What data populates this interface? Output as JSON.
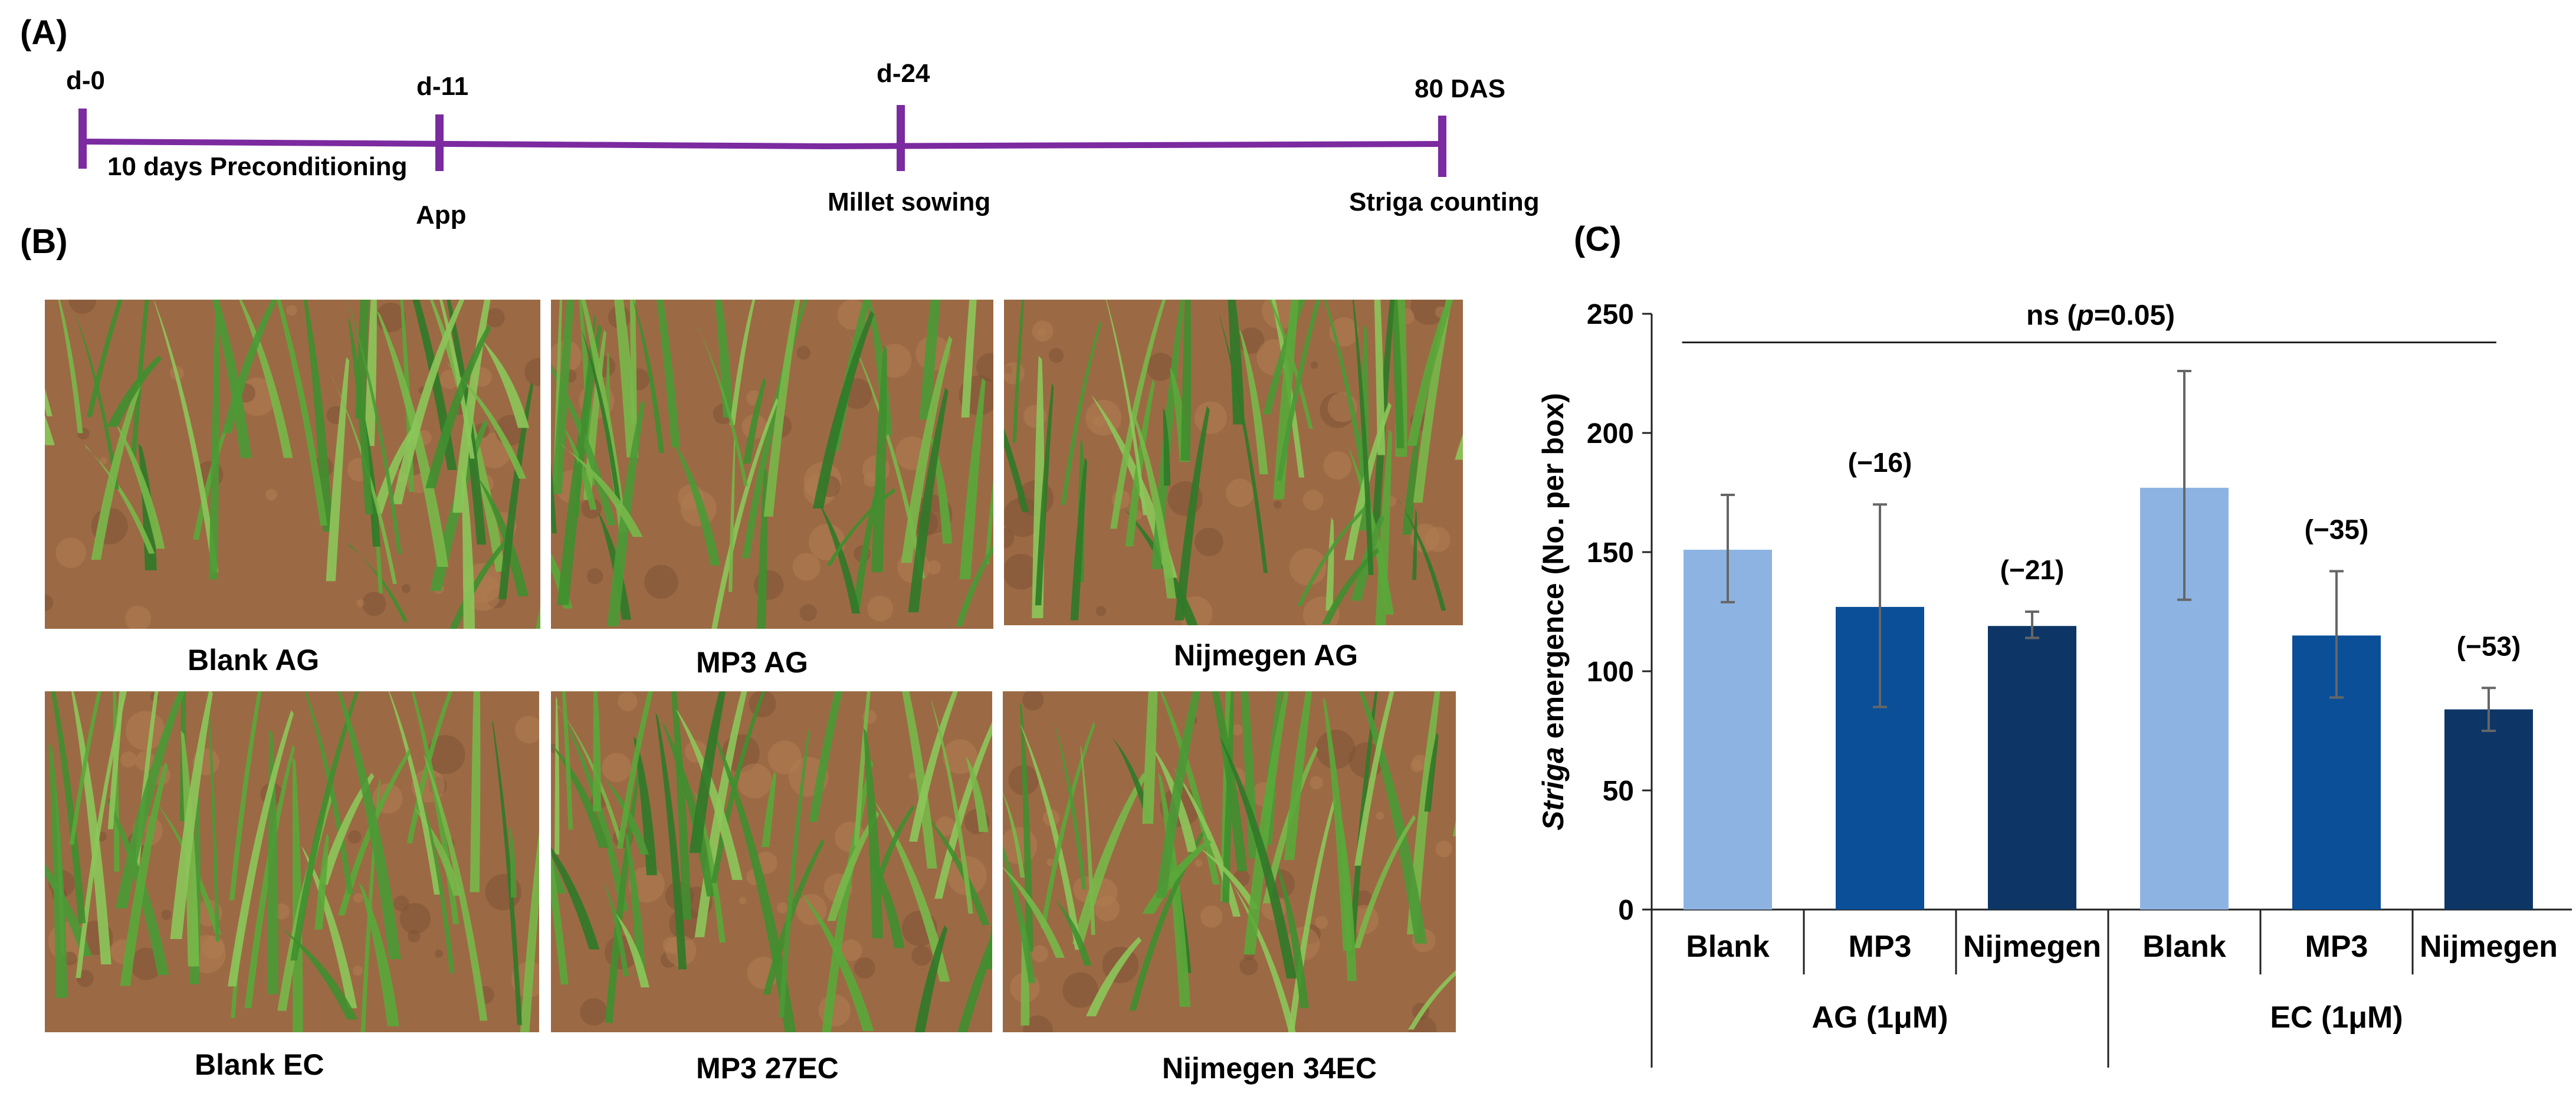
{
  "panels": {
    "a": "(A)",
    "b": "(B)",
    "c": "(C)"
  },
  "timeline": {
    "color": "#7b2aa0",
    "ticks": [
      {
        "top": "d-0",
        "bottom": ""
      },
      {
        "top": "d-11",
        "bottom": "App"
      },
      {
        "top": "d-24",
        "bottom": "Millet sowing"
      },
      {
        "top": "80 DAS",
        "bottom": "Striga counting"
      }
    ],
    "segment_label": "10 days Preconditioning"
  },
  "photos": [
    {
      "caption": "Blank AG",
      "icon": "soil-with-seedlings-photo"
    },
    {
      "caption": "MP3 AG",
      "icon": "soil-with-seedlings-photo"
    },
    {
      "caption": "Nijmegen AG",
      "icon": "soil-with-seedlings-photo"
    },
    {
      "caption": "Blank EC",
      "icon": "soil-with-seedlings-photo"
    },
    {
      "caption": "MP3 27EC",
      "icon": "soil-with-seedlings-photo"
    },
    {
      "caption": "Nijmegen 34EC",
      "icon": "soil-with-seedlings-photo"
    }
  ],
  "chart_data": {
    "type": "bar",
    "ylabel_italic": "Striga",
    "ylabel_rest": "emergence (No. per box)",
    "ylim": [
      0,
      250
    ],
    "yticks": [
      0,
      50,
      100,
      150,
      200,
      250
    ],
    "significance": {
      "prefix": "ns (",
      "italic": "p",
      "suffix": "=0.05)"
    },
    "groups": [
      {
        "label": "AG (1μM)",
        "count": 3
      },
      {
        "label": "EC (1μM)",
        "count": 3
      }
    ],
    "bars": [
      {
        "category": "Blank",
        "value": 151,
        "err_low": 129,
        "err_high": 174,
        "color": "#8db3e2",
        "annotation": ""
      },
      {
        "category": "MP3",
        "value": 127,
        "err_low": 85,
        "err_high": 170,
        "color": "#0a4f98",
        "annotation": "(−16)"
      },
      {
        "category": "Nijmegen",
        "value": 119,
        "err_low": 114,
        "err_high": 125,
        "color": "#0d3666",
        "annotation": "(−21)"
      },
      {
        "category": "Blank",
        "value": 177,
        "err_low": 130,
        "err_high": 226,
        "color": "#8db3e2",
        "annotation": ""
      },
      {
        "category": "MP3",
        "value": 115,
        "err_low": 89,
        "err_high": 142,
        "color": "#0a4f98",
        "annotation": "(−35)"
      },
      {
        "category": "Nijmegen",
        "value": 84,
        "err_low": 75,
        "err_high": 93,
        "color": "#0d3666",
        "annotation": "(−53)"
      }
    ]
  }
}
